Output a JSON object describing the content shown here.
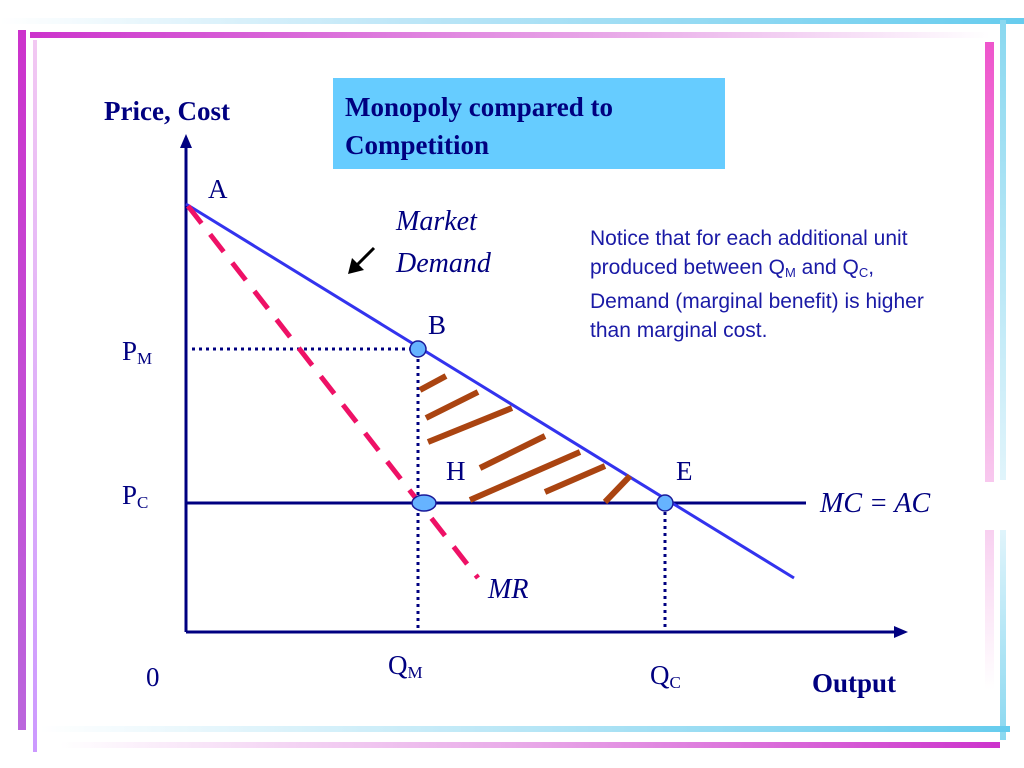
{
  "title": "Monopoly compared to Competition",
  "axes": {
    "y_label": "Price, Cost",
    "x_label": "Output",
    "origin": "0"
  },
  "points": {
    "A": "A",
    "B": "B",
    "H": "H",
    "E": "E"
  },
  "curves": {
    "demand_line1": "Market",
    "demand_line2": "Demand",
    "mr": "MR",
    "mc_ac": "MC = AC"
  },
  "levels": {
    "pm_base": "P",
    "pm_sub": "M",
    "pc_base": "P",
    "pc_sub": "C",
    "qm_base": "Q",
    "qm_sub": "M",
    "qc_base": "Q",
    "qc_sub": "C"
  },
  "note": {
    "part1": "Notice that for each additional unit produced between Q",
    "sub1": "M",
    "part2": " and Q",
    "sub2": "C",
    "part3": ", Demand (marginal benefit) is higher than marginal cost."
  },
  "colors": {
    "navy": "#000080",
    "demand": "#3333ee",
    "mr": "#ee1166",
    "hatch": "#aa4411",
    "point_fill": "#66b3ff",
    "title_bg": "#66ccff",
    "frame_magenta": "#cc33cc",
    "frame_cyan": "#66ccee"
  }
}
